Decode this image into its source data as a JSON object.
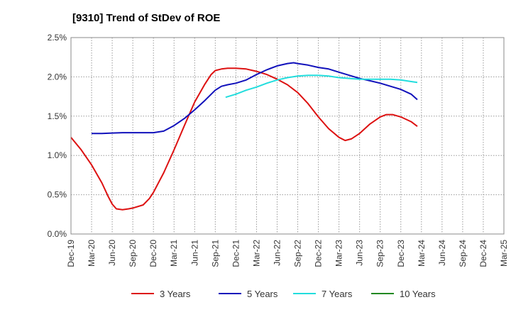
{
  "chart_data": {
    "type": "line",
    "title": "[9310]  Trend of StDev of ROE",
    "xlabel": "",
    "ylabel": "",
    "x_ticks": [
      "Dec-19",
      "Mar-20",
      "Jun-20",
      "Sep-20",
      "Dec-20",
      "Mar-21",
      "Jun-21",
      "Sep-21",
      "Dec-21",
      "Mar-22",
      "Jun-22",
      "Sep-22",
      "Dec-22",
      "Mar-23",
      "Jun-23",
      "Sep-23",
      "Dec-23",
      "Mar-24",
      "Jun-24",
      "Sep-24",
      "Dec-24",
      "Mar-25"
    ],
    "y_ticks": [
      "0.0%",
      "0.5%",
      "1.0%",
      "1.5%",
      "2.0%",
      "2.5%"
    ],
    "ylim": [
      0,
      2.5
    ],
    "grid": true,
    "legend_position": "bottom",
    "series": [
      {
        "name": "3 Years",
        "color": "#dd1111",
        "points": [
          [
            0,
            1.23
          ],
          [
            0.5,
            1.07
          ],
          [
            1,
            0.88
          ],
          [
            1.5,
            0.65
          ],
          [
            1.8,
            0.48
          ],
          [
            2,
            0.38
          ],
          [
            2.2,
            0.32
          ],
          [
            2.5,
            0.31
          ],
          [
            2.8,
            0.32
          ],
          [
            3,
            0.33
          ],
          [
            3.5,
            0.37
          ],
          [
            3.8,
            0.45
          ],
          [
            4,
            0.53
          ],
          [
            4.5,
            0.78
          ],
          [
            5,
            1.07
          ],
          [
            5.5,
            1.38
          ],
          [
            6,
            1.68
          ],
          [
            6.5,
            1.91
          ],
          [
            6.8,
            2.03
          ],
          [
            7,
            2.08
          ],
          [
            7.3,
            2.1
          ],
          [
            7.6,
            2.11
          ],
          [
            8,
            2.11
          ],
          [
            8.5,
            2.1
          ],
          [
            9,
            2.07
          ],
          [
            9.5,
            2.03
          ],
          [
            10,
            1.97
          ],
          [
            10.5,
            1.9
          ],
          [
            11,
            1.8
          ],
          [
            11.5,
            1.66
          ],
          [
            12,
            1.49
          ],
          [
            12.5,
            1.34
          ],
          [
            13,
            1.23
          ],
          [
            13.3,
            1.19
          ],
          [
            13.6,
            1.21
          ],
          [
            14,
            1.28
          ],
          [
            14.5,
            1.4
          ],
          [
            15,
            1.49
          ],
          [
            15.3,
            1.52
          ],
          [
            15.6,
            1.52
          ],
          [
            16,
            1.49
          ],
          [
            16.5,
            1.43
          ],
          [
            16.8,
            1.37
          ]
        ]
      },
      {
        "name": "5 Years",
        "color": "#1111bb",
        "points": [
          [
            1,
            1.28
          ],
          [
            1.5,
            1.28
          ],
          [
            2,
            1.285
          ],
          [
            2.5,
            1.29
          ],
          [
            3,
            1.29
          ],
          [
            3.5,
            1.29
          ],
          [
            4,
            1.29
          ],
          [
            4.5,
            1.31
          ],
          [
            5,
            1.38
          ],
          [
            5.5,
            1.47
          ],
          [
            6,
            1.58
          ],
          [
            6.5,
            1.7
          ],
          [
            7,
            1.83
          ],
          [
            7.3,
            1.88
          ],
          [
            7.6,
            1.9
          ],
          [
            8,
            1.92
          ],
          [
            8.5,
            1.96
          ],
          [
            9,
            2.03
          ],
          [
            9.5,
            2.09
          ],
          [
            10,
            2.14
          ],
          [
            10.5,
            2.17
          ],
          [
            10.8,
            2.18
          ],
          [
            11,
            2.17
          ],
          [
            11.5,
            2.15
          ],
          [
            12,
            2.12
          ],
          [
            12.5,
            2.1
          ],
          [
            13,
            2.06
          ],
          [
            13.5,
            2.02
          ],
          [
            14,
            1.98
          ],
          [
            14.5,
            1.95
          ],
          [
            15,
            1.92
          ],
          [
            15.5,
            1.88
          ],
          [
            16,
            1.84
          ],
          [
            16.5,
            1.78
          ],
          [
            16.8,
            1.71
          ]
        ]
      },
      {
        "name": "7 Years",
        "color": "#22dddd",
        "points": [
          [
            7.5,
            1.74
          ],
          [
            8,
            1.78
          ],
          [
            8.5,
            1.83
          ],
          [
            9,
            1.87
          ],
          [
            9.5,
            1.92
          ],
          [
            10,
            1.96
          ],
          [
            10.5,
            1.99
          ],
          [
            11,
            2.01
          ],
          [
            11.5,
            2.02
          ],
          [
            12,
            2.02
          ],
          [
            12.5,
            2.01
          ],
          [
            13,
            1.99
          ],
          [
            13.5,
            1.98
          ],
          [
            14,
            1.97
          ],
          [
            14.5,
            1.97
          ],
          [
            15,
            1.97
          ],
          [
            15.5,
            1.97
          ],
          [
            16,
            1.96
          ],
          [
            16.5,
            1.94
          ],
          [
            16.8,
            1.93
          ]
        ]
      },
      {
        "name": "10 Years",
        "color": "#228822",
        "points": []
      }
    ]
  }
}
